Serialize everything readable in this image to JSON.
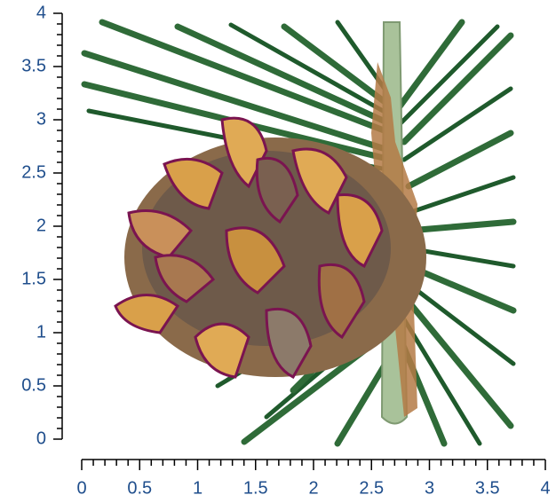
{
  "y_axis": {
    "lim": [
      0,
      4
    ],
    "ticks": [
      0,
      0.5,
      1,
      1.5,
      2,
      2.5,
      3,
      3.5,
      4
    ]
  },
  "x_axis": {
    "lim": [
      0,
      4
    ],
    "ticks": [
      0,
      0.5,
      1,
      1.5,
      2,
      2.5,
      3,
      3.5,
      4
    ]
  }
}
